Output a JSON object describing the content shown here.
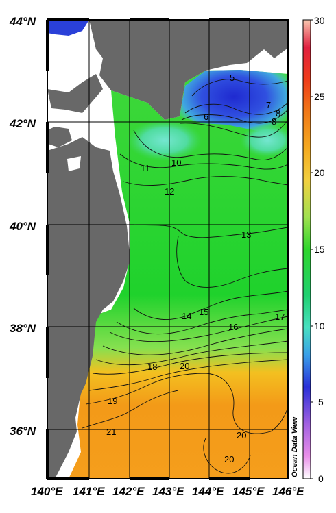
{
  "map": {
    "lat_labels": [
      "44°N",
      "42°N",
      "40°N",
      "38°N",
      "36°N"
    ],
    "lon_labels": [
      "140°E",
      "141°E",
      "142°E",
      "143°E",
      "144°E",
      "145°E",
      "146°E"
    ],
    "contour_labels": [
      "5",
      "6",
      "7",
      "8",
      "8",
      "10",
      "11",
      "12",
      "13",
      "14",
      "15",
      "16",
      "17",
      "18",
      "19",
      "20",
      "20",
      "20",
      "21"
    ],
    "credit": "Ocean Data View",
    "colors": {
      "land": "#686868",
      "deep_blue": "#2a2fd8",
      "cyan": "#62e0c8",
      "green": "#1fd22c",
      "light_green": "#86e050",
      "yellow": "#f3c020",
      "orange": "#f39a18"
    }
  },
  "colorbar": {
    "tick_labels": [
      "30",
      "25",
      "20",
      "15",
      "10",
      "5",
      "0"
    ],
    "min": 0,
    "max": 30
  }
}
